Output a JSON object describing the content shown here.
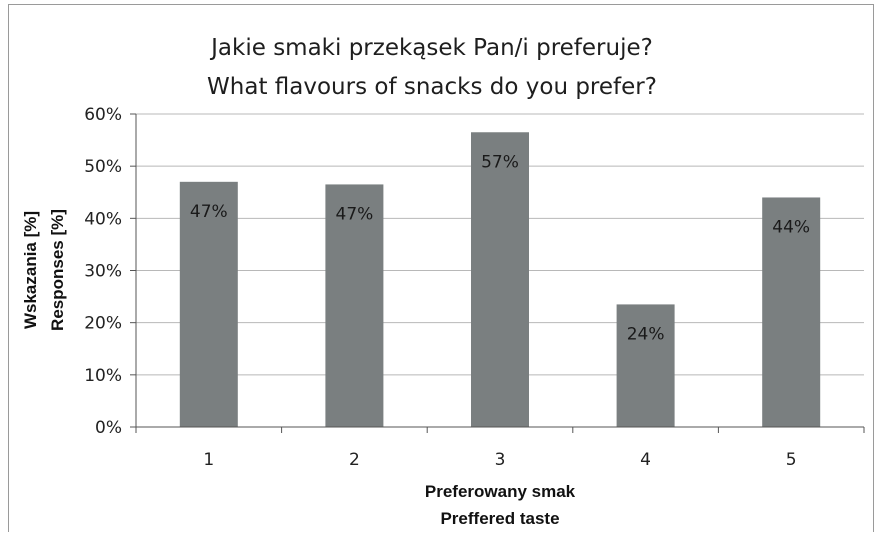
{
  "chart_data": {
    "type": "bar",
    "title": [
      "Jakie smaki przekąsek Pan/i preferuje?",
      "What flavours of snacks do you prefer?"
    ],
    "xlabel": [
      "Preferowany smak",
      "Preffered taste"
    ],
    "ylabel": [
      "Wskazania [%]",
      "Responses [%]"
    ],
    "categories": [
      "1",
      "2",
      "3",
      "4",
      "5"
    ],
    "values": [
      47,
      46.5,
      56.5,
      23.5,
      44
    ],
    "data_labels": [
      "47%",
      "47%",
      "57%",
      "24%",
      "44%"
    ],
    "ylim": [
      0,
      60
    ],
    "yticks": [
      "0%",
      "10%",
      "20%",
      "30%",
      "40%",
      "50%",
      "60%"
    ],
    "grid": true,
    "legend": "none",
    "bar_color": "#7a7f80"
  }
}
